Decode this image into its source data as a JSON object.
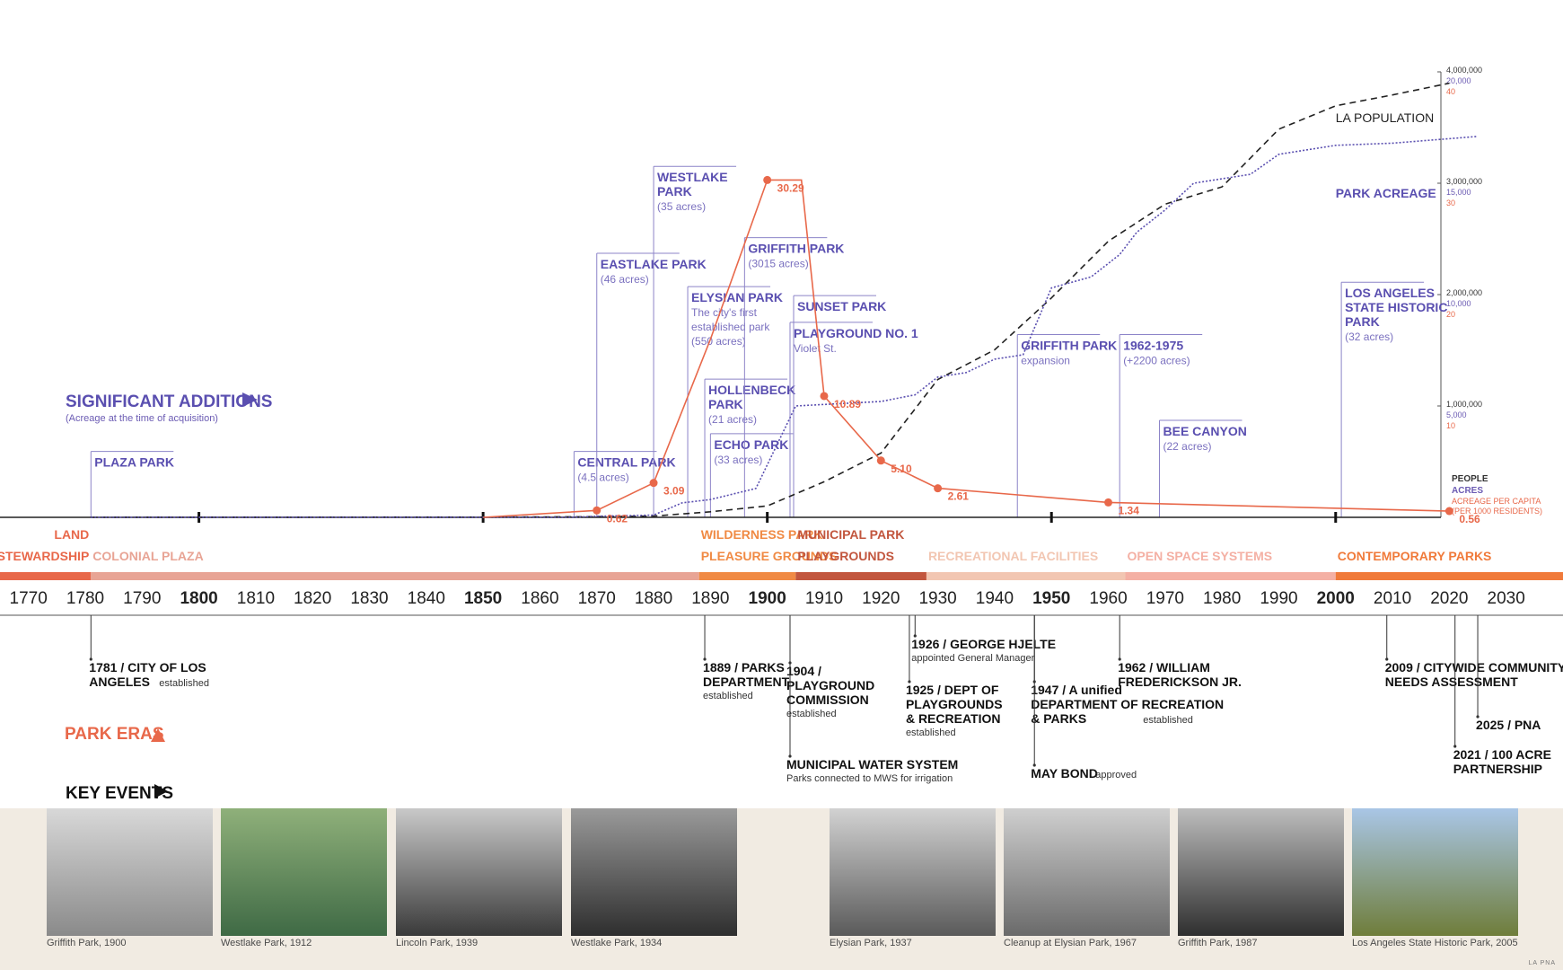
{
  "chart_data": {
    "type": "line",
    "x_range": [
      1765,
      2040
    ],
    "decade_ticks": [
      "1770",
      "1780",
      "1790",
      "1800",
      "1810",
      "1820",
      "1830",
      "1840",
      "1850",
      "1860",
      "1870",
      "1880",
      "1890",
      "1900",
      "1910",
      "1920",
      "1930",
      "1940",
      "1950",
      "1960",
      "1970",
      "1980",
      "1990",
      "2000",
      "2010",
      "2020",
      "2030"
    ],
    "bold_ticks": [
      "1800",
      "1850",
      "1900",
      "1950",
      "2000"
    ],
    "axis_right": {
      "people": {
        "label": "PEOPLE",
        "ticks": [
          "1,000,000",
          "2,000,000",
          "3,000,000",
          "4,000,000"
        ],
        "max": 4000000,
        "color": "#333333"
      },
      "acres": {
        "label": "ACRES",
        "ticks": [
          "5,000",
          "10,000",
          "15,000",
          "20,000"
        ],
        "max": 20000,
        "color": "#6b5bb3"
      },
      "per_capita": {
        "label": "ACREAGE PER CAPITA",
        "sublabel": "(PER 1000 RESIDENTS)",
        "ticks": [
          "10",
          "20",
          "30",
          "40"
        ],
        "max": 40,
        "color": "#e8684a"
      }
    },
    "series": [
      {
        "name": "LA POPULATION",
        "color": "#222222",
        "style": "dashed",
        "points": [
          [
            1781,
            44
          ],
          [
            1850,
            1610
          ],
          [
            1870,
            5728
          ],
          [
            1880,
            11183
          ],
          [
            1890,
            50395
          ],
          [
            1900,
            102479
          ],
          [
            1910,
            319198
          ],
          [
            1920,
            576673
          ],
          [
            1930,
            1238048
          ],
          [
            1940,
            1504277
          ],
          [
            1950,
            1970358
          ],
          [
            1960,
            2479015
          ],
          [
            1970,
            2811801
          ],
          [
            1980,
            2966850
          ],
          [
            1990,
            3485398
          ],
          [
            2000,
            3694820
          ],
          [
            2010,
            3792621
          ],
          [
            2020,
            3898747
          ]
        ]
      },
      {
        "name": "PARK ACREAGE",
        "color": "#5a4fb0",
        "style": "dotted",
        "points": [
          [
            1781,
            0
          ],
          [
            1866,
            4.5
          ],
          [
            1870,
            50
          ],
          [
            1880,
            100
          ],
          [
            1885,
            650
          ],
          [
            1890,
            800
          ],
          [
            1898,
            1300
          ],
          [
            1905,
            5000
          ],
          [
            1920,
            5200
          ],
          [
            1926,
            5500
          ],
          [
            1930,
            6300
          ],
          [
            1935,
            6500
          ],
          [
            1940,
            7100
          ],
          [
            1945,
            7300
          ],
          [
            1947,
            8500
          ],
          [
            1950,
            10300
          ],
          [
            1957,
            10800
          ],
          [
            1962,
            11800
          ],
          [
            1965,
            12800
          ],
          [
            1970,
            13800
          ],
          [
            1975,
            15000
          ],
          [
            1985,
            15400
          ],
          [
            1990,
            16300
          ],
          [
            2000,
            16700
          ],
          [
            2010,
            16800
          ],
          [
            2020,
            17000
          ],
          [
            2025,
            17100
          ]
        ]
      },
      {
        "name": "ACREAGE PER CAPITA",
        "color": "#e8684a",
        "style": "solid",
        "points": [
          [
            1850,
            0
          ],
          [
            1870,
            0.62
          ],
          [
            1880,
            3.09
          ],
          [
            1890,
            16
          ],
          [
            1900,
            30.29
          ],
          [
            1906,
            30.29
          ],
          [
            1910,
            10.89
          ],
          [
            1920,
            5.1
          ],
          [
            1930,
            2.61
          ],
          [
            1960,
            1.34
          ],
          [
            2020,
            0.56
          ]
        ],
        "labels": [
          {
            "x": 1870,
            "y": 0.62,
            "text": "0.62"
          },
          {
            "x": 1880,
            "y": 3.09,
            "text": "3.09"
          },
          {
            "x": 1900,
            "y": 30.29,
            "text": "30.29"
          },
          {
            "x": 1910,
            "y": 10.89,
            "text": "10.89"
          },
          {
            "x": 1920,
            "y": 5.1,
            "text": "5.10"
          },
          {
            "x": 1930,
            "y": 2.61,
            "text": "2.61"
          },
          {
            "x": 1960,
            "y": 1.34,
            "text": "1.34"
          },
          {
            "x": 2020,
            "y": 0.56,
            "text": "0.56"
          }
        ]
      }
    ],
    "series_labels": [
      {
        "text": "LA POPULATION",
        "x": 2000,
        "y_people": 3550000,
        "color": "#222222"
      },
      {
        "text": "PARK ACREAGE",
        "x": 2000,
        "y_people": 2870000,
        "color": "#5a4fb0"
      }
    ]
  },
  "significant_additions": {
    "title": "SIGNIFICANT ADDITIONS",
    "subtitle": "(Acreage at the time of acquisition)",
    "arrow_icon": "triangle-right-icon",
    "items": [
      {
        "year": 1781,
        "lines": [
          "PLAZA PARK"
        ],
        "level": 0.43
      },
      {
        "year": 1866,
        "lines": [
          "CENTRAL PARK",
          "(4.5 acres)"
        ],
        "level": 0.43
      },
      {
        "year": 1870,
        "lines": [
          "EASTLAKE PARK",
          "(46 acres)"
        ],
        "level": 2.21
      },
      {
        "year": 1880,
        "lines": [
          "WESTLAKE",
          "PARK",
          "(35 acres)"
        ],
        "level": 2.99
      },
      {
        "year": 1886,
        "lines": [
          "ELYSIAN PARK",
          "The city's first",
          "established park",
          "(550 acres)"
        ],
        "level": 1.91
      },
      {
        "year": 1889,
        "lines": [
          "HOLLENBECK",
          "PARK",
          "(21 acres)"
        ],
        "level": 1.08
      },
      {
        "year": 1890,
        "lines": [
          "ECHO PARK",
          "(33 acres)"
        ],
        "level": 0.59
      },
      {
        "year": 1896,
        "lines": [
          "GRIFFITH PARK",
          "(3015 acres)"
        ],
        "level": 2.35
      },
      {
        "year": 1904,
        "lines": [
          "SUNSET PARK"
        ],
        "level": 1.83
      },
      {
        "year": 1904,
        "lines": [
          "PLAYGROUND NO. 1",
          "Violet St."
        ],
        "level": 1.59
      },
      {
        "year": 1944,
        "lines": [
          "GRIFFITH PARK",
          "expansion"
        ],
        "level": 1.48
      },
      {
        "year": 1962,
        "lines": [
          "1962-1975",
          "(+2200 acres)"
        ],
        "level": 1.48
      },
      {
        "year": 1969,
        "lines": [
          "BEE CANYON",
          "(22 acres)"
        ],
        "level": 0.71
      },
      {
        "year": 2001,
        "lines": [
          "LOS ANGELES",
          "STATE HISTORIC",
          "PARK",
          "(32 acres)"
        ],
        "level": 1.95
      }
    ]
  },
  "park_eras": {
    "title": "PARK ERAS",
    "arrow_icon": "triangle-up-icon",
    "eras": [
      {
        "from": 1765,
        "to": 1781,
        "label": [
          "LAND",
          "STEWARDSHIP"
        ],
        "color": "#e8684a"
      },
      {
        "from": 1781,
        "to": 1888,
        "label": [
          "COLONIAL PLAZA"
        ],
        "color": "#e8a495"
      },
      {
        "from": 1888,
        "to": 1905,
        "label": [
          "WILDERNESS PARK",
          "PLEASURE GROUNDS"
        ],
        "color": "#f08a44"
      },
      {
        "from": 1905,
        "to": 1928,
        "label": [
          "MUNICIPAL PARK",
          "PLAYGROUNDS"
        ],
        "color": "#c2563e"
      },
      {
        "from": 1928,
        "to": 1963,
        "label": [
          "RECREATIONAL FACILITIES"
        ],
        "color": "#f2c6b2"
      },
      {
        "from": 1963,
        "to": 2000,
        "label": [
          "OPEN SPACE SYSTEMS"
        ],
        "color": "#f4b0a4"
      },
      {
        "from": 2000,
        "to": 2040,
        "label": [
          "CONTEMPORARY PARKS"
        ],
        "color": "#f07a3a"
      }
    ]
  },
  "key_events": {
    "title": "KEY EVENTS",
    "arrow_icon": "triangle-right-icon",
    "events": [
      {
        "year": 1781,
        "bold": [
          "1781 / CITY OF LOS",
          "ANGELES"
        ],
        "normal": "established",
        "row": 0
      },
      {
        "year": 1889,
        "bold": [
          "1889 / PARKS",
          "DEPARTMENT"
        ],
        "normal": "established",
        "row": 0
      },
      {
        "year": 1904,
        "bold": [
          "1904 /",
          "PLAYGROUND",
          "COMMISSION"
        ],
        "normal": "established",
        "row": 1
      },
      {
        "year": 1904,
        "bold": [
          "MUNICIPAL WATER SYSTEM"
        ],
        "normal": "Parks connected to MWS for irrigation",
        "row": 3
      },
      {
        "year": 1926,
        "bold": [
          "1926 / GEORGE HJELTE"
        ],
        "normal": "appointed General Manager",
        "row": -1
      },
      {
        "year": 1925,
        "bold": [
          "1925 / DEPT OF",
          "PLAYGROUNDS",
          "& RECREATION"
        ],
        "normal": "established",
        "row": 2
      },
      {
        "year": 1947,
        "bold": [
          "1947 / A unified",
          "DEPARTMENT OF RECREATION",
          "& PARKS"
        ],
        "normal": "established",
        "row": 2
      },
      {
        "year": 1947,
        "bold": [
          "MAY BOND"
        ],
        "normal": "approved",
        "row": 4
      },
      {
        "year": 1962,
        "bold": [
          "1962 / WILLIAM",
          "FREDERICKSON JR."
        ],
        "normal": "",
        "row": 0
      },
      {
        "year": 2009,
        "bold": [
          "2009 / CITYWIDE COMMUNITY",
          "NEEDS ASSESSMENT"
        ],
        "normal": "",
        "row": 0
      },
      {
        "year": 2025,
        "bold": [
          "2025 / PNA"
        ],
        "normal": "",
        "row": 5
      },
      {
        "year": 2021,
        "bold": [
          "2021 / 100 ACRE",
          "PARTNERSHIP"
        ],
        "normal": "",
        "row": 6
      }
    ]
  },
  "photos": [
    {
      "caption": "Griffith Park, 1900",
      "tone": [
        "#d8d8d8",
        "#8a8a8a"
      ]
    },
    {
      "caption": "Westlake Park, 1912",
      "tone": [
        "#8fb07a",
        "#3f6a45"
      ]
    },
    {
      "caption": "Lincoln Park, 1939",
      "tone": [
        "#c9c9c9",
        "#3a3a3a"
      ]
    },
    {
      "caption": "Westlake Park, 1934",
      "tone": [
        "#9a9a9a",
        "#2e2e2e"
      ]
    },
    {
      "caption": "Elysian Park, 1937",
      "tone": [
        "#d2d2d2",
        "#5a5a5a"
      ]
    },
    {
      "caption": "Cleanup at Elysian Park, 1967",
      "tone": [
        "#cfcfcf",
        "#6a6a6a"
      ]
    },
    {
      "caption": "Griffith Park, 1987",
      "tone": [
        "#bdbdbd",
        "#2f2f2f"
      ]
    },
    {
      "caption": "Los Angeles State Historic Park, 2005",
      "tone": [
        "#a9c6e6",
        "#6f7d3a"
      ]
    }
  ],
  "credit": "LA PNA"
}
